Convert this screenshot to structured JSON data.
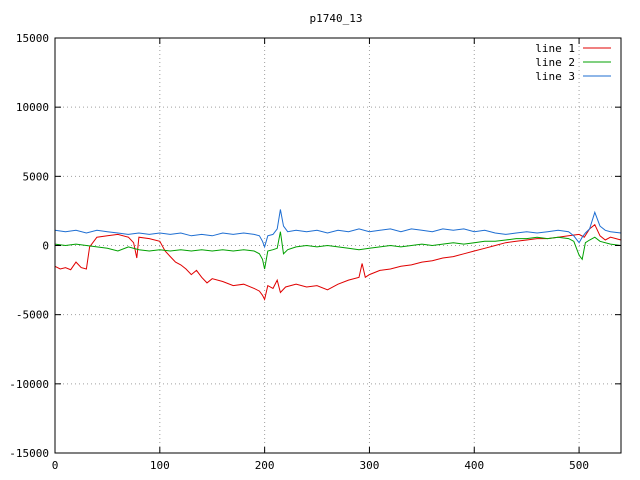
{
  "chart_data": {
    "type": "line",
    "title": "p1740_13",
    "xlabel": "",
    "ylabel": "",
    "xlim": [
      0,
      540
    ],
    "ylim": [
      -15000,
      15000
    ],
    "xticks": [
      0,
      100,
      200,
      300,
      400,
      500
    ],
    "xtick_labels": [
      "0",
      "100",
      "200",
      "300",
      "400",
      "500"
    ],
    "yticks": [
      -15000,
      -10000,
      -5000,
      0,
      5000,
      10000,
      15000
    ],
    "ytick_labels": [
      "-15000",
      "-10000",
      "-5000",
      "0",
      "5000",
      "10000",
      "15000"
    ],
    "grid": true,
    "legend_position": "top-right",
    "series": [
      {
        "name": "line 1",
        "color": "#e00000",
        "points": [
          [
            0,
            -1500
          ],
          [
            5,
            -1700
          ],
          [
            10,
            -1600
          ],
          [
            15,
            -1750
          ],
          [
            20,
            -1200
          ],
          [
            25,
            -1600
          ],
          [
            30,
            -1700
          ],
          [
            33,
            -100
          ],
          [
            40,
            600
          ],
          [
            50,
            700
          ],
          [
            60,
            800
          ],
          [
            70,
            600
          ],
          [
            75,
            200
          ],
          [
            78,
            -900
          ],
          [
            80,
            600
          ],
          [
            90,
            500
          ],
          [
            100,
            300
          ],
          [
            105,
            -400
          ],
          [
            110,
            -800
          ],
          [
            115,
            -1200
          ],
          [
            120,
            -1400
          ],
          [
            125,
            -1700
          ],
          [
            130,
            -2100
          ],
          [
            135,
            -1800
          ],
          [
            140,
            -2300
          ],
          [
            145,
            -2700
          ],
          [
            150,
            -2400
          ],
          [
            160,
            -2600
          ],
          [
            170,
            -2900
          ],
          [
            180,
            -2800
          ],
          [
            190,
            -3100
          ],
          [
            195,
            -3300
          ],
          [
            198,
            -3600
          ],
          [
            200,
            -3900
          ],
          [
            203,
            -2900
          ],
          [
            208,
            -3100
          ],
          [
            212,
            -2500
          ],
          [
            215,
            -3400
          ],
          [
            220,
            -3000
          ],
          [
            230,
            -2800
          ],
          [
            240,
            -3000
          ],
          [
            250,
            -2900
          ],
          [
            260,
            -3200
          ],
          [
            270,
            -2800
          ],
          [
            280,
            -2500
          ],
          [
            290,
            -2300
          ],
          [
            293,
            -1300
          ],
          [
            296,
            -2300
          ],
          [
            300,
            -2100
          ],
          [
            310,
            -1800
          ],
          [
            320,
            -1700
          ],
          [
            330,
            -1500
          ],
          [
            340,
            -1400
          ],
          [
            350,
            -1200
          ],
          [
            360,
            -1100
          ],
          [
            370,
            -900
          ],
          [
            380,
            -800
          ],
          [
            390,
            -600
          ],
          [
            400,
            -400
          ],
          [
            410,
            -200
          ],
          [
            420,
            0
          ],
          [
            430,
            200
          ],
          [
            440,
            300
          ],
          [
            450,
            400
          ],
          [
            460,
            500
          ],
          [
            470,
            500
          ],
          [
            480,
            600
          ],
          [
            490,
            700
          ],
          [
            500,
            800
          ],
          [
            505,
            600
          ],
          [
            510,
            1200
          ],
          [
            515,
            1500
          ],
          [
            520,
            700
          ],
          [
            525,
            400
          ],
          [
            530,
            600
          ],
          [
            540,
            400
          ]
        ]
      },
      {
        "name": "line 2",
        "color": "#00a000",
        "points": [
          [
            0,
            100
          ],
          [
            10,
            0
          ],
          [
            20,
            100
          ],
          [
            30,
            0
          ],
          [
            40,
            -100
          ],
          [
            50,
            -200
          ],
          [
            60,
            -400
          ],
          [
            70,
            -100
          ],
          [
            80,
            -300
          ],
          [
            90,
            -400
          ],
          [
            100,
            -300
          ],
          [
            110,
            -400
          ],
          [
            120,
            -300
          ],
          [
            130,
            -400
          ],
          [
            140,
            -300
          ],
          [
            150,
            -400
          ],
          [
            160,
            -300
          ],
          [
            170,
            -400
          ],
          [
            180,
            -300
          ],
          [
            190,
            -400
          ],
          [
            195,
            -600
          ],
          [
            198,
            -1000
          ],
          [
            200,
            -1700
          ],
          [
            203,
            -400
          ],
          [
            208,
            -300
          ],
          [
            212,
            -200
          ],
          [
            215,
            1000
          ],
          [
            218,
            -600
          ],
          [
            222,
            -300
          ],
          [
            230,
            -100
          ],
          [
            240,
            0
          ],
          [
            250,
            -100
          ],
          [
            260,
            0
          ],
          [
            270,
            -100
          ],
          [
            280,
            -200
          ],
          [
            290,
            -300
          ],
          [
            300,
            -200
          ],
          [
            310,
            -100
          ],
          [
            320,
            0
          ],
          [
            330,
            -100
          ],
          [
            340,
            0
          ],
          [
            350,
            100
          ],
          [
            360,
            0
          ],
          [
            370,
            100
          ],
          [
            380,
            200
          ],
          [
            390,
            100
          ],
          [
            400,
            200
          ],
          [
            410,
            300
          ],
          [
            420,
            300
          ],
          [
            430,
            400
          ],
          [
            440,
            500
          ],
          [
            450,
            500
          ],
          [
            460,
            600
          ],
          [
            470,
            500
          ],
          [
            480,
            600
          ],
          [
            490,
            500
          ],
          [
            495,
            300
          ],
          [
            500,
            -700
          ],
          [
            503,
            -1000
          ],
          [
            506,
            200
          ],
          [
            510,
            400
          ],
          [
            515,
            600
          ],
          [
            520,
            300
          ],
          [
            530,
            100
          ],
          [
            540,
            0
          ]
        ]
      },
      {
        "name": "line 3",
        "color": "#1e6ed2",
        "points": [
          [
            0,
            1100
          ],
          [
            10,
            1000
          ],
          [
            20,
            1100
          ],
          [
            30,
            900
          ],
          [
            40,
            1100
          ],
          [
            50,
            1000
          ],
          [
            60,
            900
          ],
          [
            70,
            800
          ],
          [
            80,
            900
          ],
          [
            90,
            800
          ],
          [
            100,
            900
          ],
          [
            110,
            800
          ],
          [
            120,
            900
          ],
          [
            130,
            700
          ],
          [
            140,
            800
          ],
          [
            150,
            700
          ],
          [
            160,
            900
          ],
          [
            170,
            800
          ],
          [
            180,
            900
          ],
          [
            190,
            800
          ],
          [
            195,
            700
          ],
          [
            198,
            300
          ],
          [
            200,
            -100
          ],
          [
            203,
            700
          ],
          [
            208,
            800
          ],
          [
            212,
            1200
          ],
          [
            215,
            2600
          ],
          [
            218,
            1400
          ],
          [
            222,
            1000
          ],
          [
            230,
            1100
          ],
          [
            240,
            1000
          ],
          [
            250,
            1100
          ],
          [
            260,
            900
          ],
          [
            270,
            1100
          ],
          [
            280,
            1000
          ],
          [
            290,
            1200
          ],
          [
            300,
            1000
          ],
          [
            310,
            1100
          ],
          [
            320,
            1200
          ],
          [
            330,
            1000
          ],
          [
            340,
            1200
          ],
          [
            350,
            1100
          ],
          [
            360,
            1000
          ],
          [
            370,
            1200
          ],
          [
            380,
            1100
          ],
          [
            390,
            1200
          ],
          [
            400,
            1000
          ],
          [
            410,
            1100
          ],
          [
            420,
            900
          ],
          [
            430,
            800
          ],
          [
            440,
            900
          ],
          [
            450,
            1000
          ],
          [
            460,
            900
          ],
          [
            470,
            1000
          ],
          [
            480,
            1100
          ],
          [
            490,
            1000
          ],
          [
            495,
            700
          ],
          [
            500,
            200
          ],
          [
            503,
            600
          ],
          [
            506,
            900
          ],
          [
            510,
            1200
          ],
          [
            515,
            2400
          ],
          [
            520,
            1400
          ],
          [
            525,
            1100
          ],
          [
            530,
            1000
          ],
          [
            540,
            900
          ]
        ]
      }
    ]
  }
}
